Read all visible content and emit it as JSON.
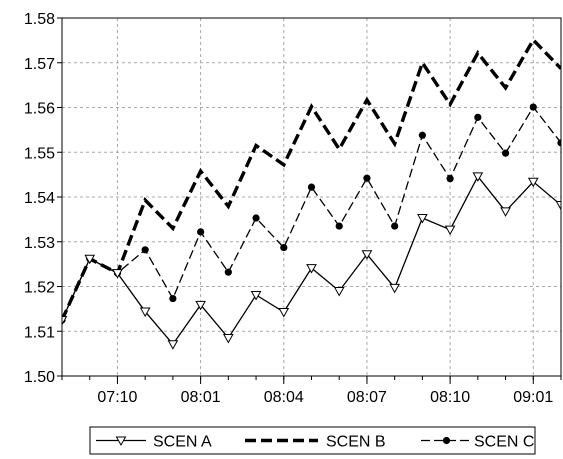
{
  "chart_data": {
    "type": "line",
    "categories": [
      "",
      "",
      "07:10",
      "",
      "",
      "08:01",
      "",
      "",
      "08:04",
      "",
      "",
      "08:07",
      "",
      "",
      "08:10",
      "",
      "",
      "09:01",
      ""
    ],
    "x_tick_labels": [
      "07:10",
      "08:01",
      "08:04",
      "08:07",
      "08:10",
      "09:01"
    ],
    "y_tick_labels": [
      "1.50",
      "1.51",
      "1.52",
      "1.53",
      "1.54",
      "1.55",
      "1.56",
      "1.57",
      "1.58"
    ],
    "ylim": [
      1.5,
      1.58
    ],
    "ylabel": "",
    "xlabel": "",
    "title": "",
    "grid": true,
    "legend_position": "bottom-center",
    "series": [
      {
        "name": "SCEN A",
        "style": "solid-triangle",
        "color": "#000000",
        "values": [
          1.5125,
          1.5262,
          1.523,
          1.5144,
          1.5071,
          1.5159,
          1.5085,
          1.5181,
          1.5143,
          1.5241,
          1.519,
          1.5272,
          1.5197,
          1.5353,
          1.5327,
          1.5446,
          1.5368,
          1.5434,
          1.5382
        ]
      },
      {
        "name": "SCEN B",
        "style": "heavy-dashed",
        "color": "#000000",
        "values": [
          1.5125,
          1.5262,
          1.523,
          1.5393,
          1.533,
          1.5458,
          1.5379,
          1.5515,
          1.5472,
          1.5602,
          1.5507,
          1.5617,
          1.5519,
          1.57,
          1.5607,
          1.5722,
          1.5644,
          1.5751,
          1.5687
        ]
      },
      {
        "name": "SCEN C",
        "style": "dashed-dot",
        "color": "#000000",
        "values": [
          1.5125,
          1.5262,
          1.523,
          1.5282,
          1.5173,
          1.5322,
          1.5232,
          1.5353,
          1.5287,
          1.5422,
          1.5335,
          1.5442,
          1.5335,
          1.5538,
          1.5441,
          1.5578,
          1.5498,
          1.5601,
          1.5521
        ]
      }
    ]
  }
}
